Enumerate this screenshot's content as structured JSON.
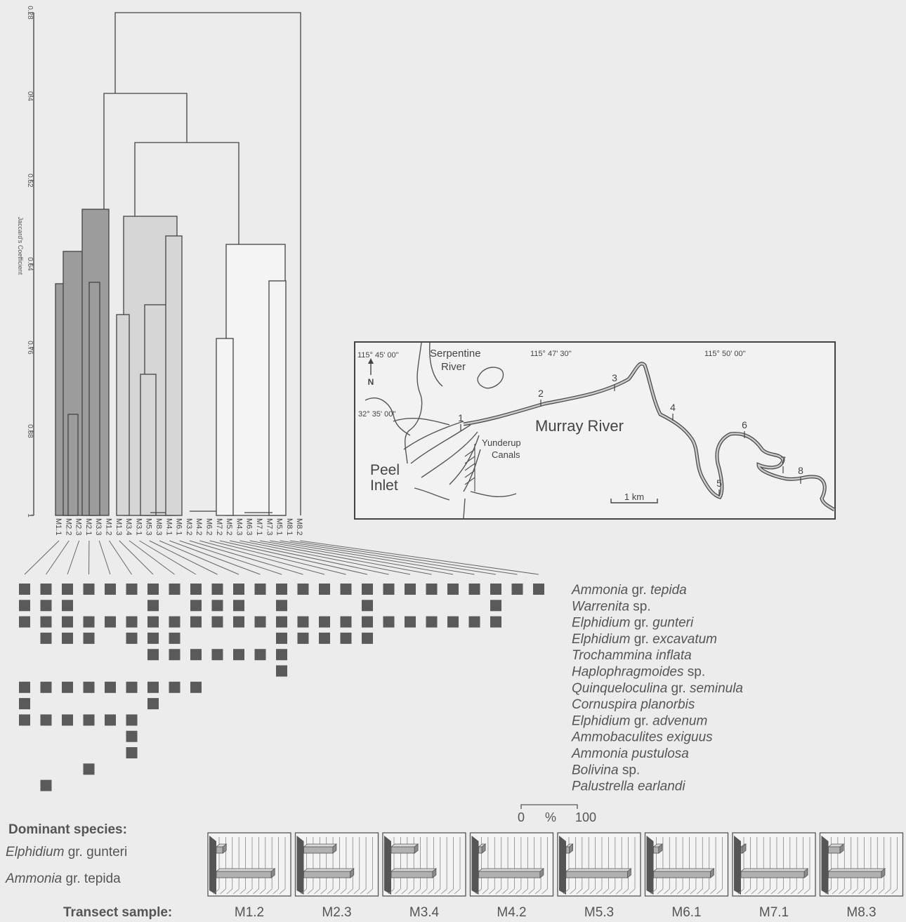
{
  "dendrogram": {
    "axis_label": "Jaccard's Coefficient",
    "axis_ticks": [
      "0.28",
      "0.4",
      "0.52",
      "0.64",
      "0.76",
      "0.88",
      "1"
    ],
    "samples": [
      "M1.1",
      "M2.2",
      "M2.3",
      "M2.1",
      "M3.3",
      "M1.2",
      "M1.3",
      "M3.4",
      "M3.1",
      "M5.3",
      "M8.3",
      "M4.1",
      "M6.1",
      "M3.2",
      "M4.2",
      "M6.2",
      "M7.2",
      "M5.2",
      "M4.3",
      "M6.3",
      "M7.1",
      "M7.3",
      "M5.1",
      "M8.1",
      "M8.2"
    ],
    "cluster_colors": [
      "#9c9c9c",
      "#d6d6d6",
      "#f2f2f2"
    ]
  },
  "map": {
    "labels": {
      "lon1": "115° 45' 00''",
      "lon2": "115° 47' 30''",
      "lon3": "115° 50' 00''",
      "lat": "32° 35' 00''",
      "north": "N",
      "serpentine1": "Serpentine",
      "serpentine2": "River",
      "murray": "Murray River",
      "yunderup1": "Yunderup",
      "yunderup2": "Canals",
      "peel1": "Peel",
      "peel2": "Inlet",
      "scale": "1 km"
    },
    "stations": [
      "1",
      "2",
      "3",
      "4",
      "5",
      "6",
      "7",
      "8"
    ]
  },
  "species": [
    {
      "genus": "Ammonia",
      "rest": " gr. tepida",
      "rest_italic": true,
      "qual": "gr. ",
      "epithet": "tepida"
    },
    {
      "genus": "Warrenita",
      "qual": " sp.",
      "epithet": ""
    },
    {
      "genus": "Elphidium",
      "qual": " gr. ",
      "epithet": "gunteri"
    },
    {
      "genus": "Elphidium",
      "qual": " gr. ",
      "epithet": "excavatum"
    },
    {
      "genus": "Trochammina inflata",
      "qual": "",
      "epithet": ""
    },
    {
      "genus": "Haplophragmoides",
      "qual": " sp.",
      "epithet": ""
    },
    {
      "genus": "Quinqueloculina",
      "qual": " gr. ",
      "epithet": "seminula"
    },
    {
      "genus": "Cornuspira planorbis",
      "qual": "",
      "epithet": ""
    },
    {
      "genus": "Elphidium",
      "qual": " gr. ",
      "epithet": "advenum"
    },
    {
      "genus": "Ammobaculites exiguus",
      "qual": "",
      "epithet": ""
    },
    {
      "genus": "Ammonia pustulosa",
      "qual": "",
      "epithet": ""
    },
    {
      "genus": "Bolivina",
      "qual": " sp.",
      "epithet": ""
    },
    {
      "genus": "Palustrella earlandi",
      "qual": "",
      "epithet": ""
    }
  ],
  "presence_matrix": [
    [
      1,
      1,
      1,
      1,
      1,
      1,
      1,
      1,
      1,
      1,
      1,
      1,
      1,
      1,
      1,
      1,
      1,
      1,
      1,
      1,
      1,
      1,
      1,
      1,
      1
    ],
    [
      1,
      1,
      1,
      0,
      0,
      0,
      1,
      0,
      1,
      1,
      1,
      0,
      1,
      0,
      0,
      0,
      1,
      0,
      0,
      0,
      0,
      0,
      1,
      0,
      0
    ],
    [
      1,
      1,
      1,
      1,
      1,
      1,
      1,
      1,
      1,
      1,
      1,
      1,
      1,
      1,
      1,
      1,
      1,
      1,
      1,
      1,
      1,
      1,
      1,
      0,
      0
    ],
    [
      0,
      1,
      1,
      1,
      0,
      1,
      1,
      1,
      0,
      0,
      0,
      0,
      1,
      1,
      1,
      1,
      1,
      0,
      0,
      0,
      0,
      0,
      0,
      0,
      0
    ],
    [
      0,
      0,
      0,
      0,
      0,
      0,
      1,
      1,
      1,
      1,
      1,
      1,
      1,
      0,
      0,
      0,
      0,
      0,
      0,
      0,
      0,
      0,
      0,
      0,
      0
    ],
    [
      0,
      0,
      0,
      0,
      0,
      0,
      0,
      0,
      0,
      0,
      0,
      0,
      1,
      0,
      0,
      0,
      0,
      0,
      0,
      0,
      0,
      0,
      0,
      0,
      0
    ],
    [
      1,
      1,
      1,
      1,
      1,
      1,
      1,
      1,
      1,
      0,
      0,
      0,
      0,
      0,
      0,
      0,
      0,
      0,
      0,
      0,
      0,
      0,
      0,
      0,
      0
    ],
    [
      1,
      0,
      0,
      0,
      0,
      0,
      1,
      0,
      0,
      0,
      0,
      0,
      0,
      0,
      0,
      0,
      0,
      0,
      0,
      0,
      0,
      0,
      0,
      0,
      0
    ],
    [
      1,
      1,
      1,
      1,
      1,
      1,
      0,
      0,
      0,
      0,
      0,
      0,
      0,
      0,
      0,
      0,
      0,
      0,
      0,
      0,
      0,
      0,
      0,
      0,
      0
    ],
    [
      0,
      0,
      0,
      0,
      0,
      1,
      0,
      0,
      0,
      0,
      0,
      0,
      0,
      0,
      0,
      0,
      0,
      0,
      0,
      0,
      0,
      0,
      0,
      0,
      0
    ],
    [
      0,
      0,
      0,
      0,
      0,
      1,
      0,
      0,
      0,
      0,
      0,
      0,
      0,
      0,
      0,
      0,
      0,
      0,
      0,
      0,
      0,
      0,
      0,
      0,
      0
    ],
    [
      0,
      0,
      0,
      1,
      0,
      0,
      0,
      0,
      0,
      0,
      0,
      0,
      0,
      0,
      0,
      0,
      0,
      0,
      0,
      0,
      0,
      0,
      0,
      0,
      0
    ],
    [
      0,
      1,
      0,
      0,
      0,
      0,
      0,
      0,
      0,
      0,
      0,
      0,
      0,
      0,
      0,
      0,
      0,
      0,
      0,
      0,
      0,
      0,
      0,
      0,
      0
    ]
  ],
  "dominant": {
    "title": "Dominant species:",
    "species1_genus": "Elphidium",
    "species1_rest": " gr. gunteri",
    "species2_genus": "Ammonia",
    "species2_rest": " gr. tepida",
    "scale_min": "0",
    "scale_unit": "%",
    "scale_max": "100",
    "transect_label": "Transect sample:",
    "samples": [
      {
        "name": "M1.2",
        "elphidium_pct": 10,
        "ammonia_pct": 85
      },
      {
        "name": "M2.3",
        "elphidium_pct": 45,
        "ammonia_pct": 72
      },
      {
        "name": "M3.4",
        "elphidium_pct": 36,
        "ammonia_pct": 64
      },
      {
        "name": "M4.2",
        "elphidium_pct": 5,
        "ammonia_pct": 95
      },
      {
        "name": "M5.3",
        "elphidium_pct": 5,
        "ammonia_pct": 95
      },
      {
        "name": "M6.1",
        "elphidium_pct": 8,
        "ammonia_pct": 88
      },
      {
        "name": "M7.1",
        "elphidium_pct": 2,
        "ammonia_pct": 98
      },
      {
        "name": "M8.3",
        "elphidium_pct": 18,
        "ammonia_pct": 82
      }
    ]
  }
}
